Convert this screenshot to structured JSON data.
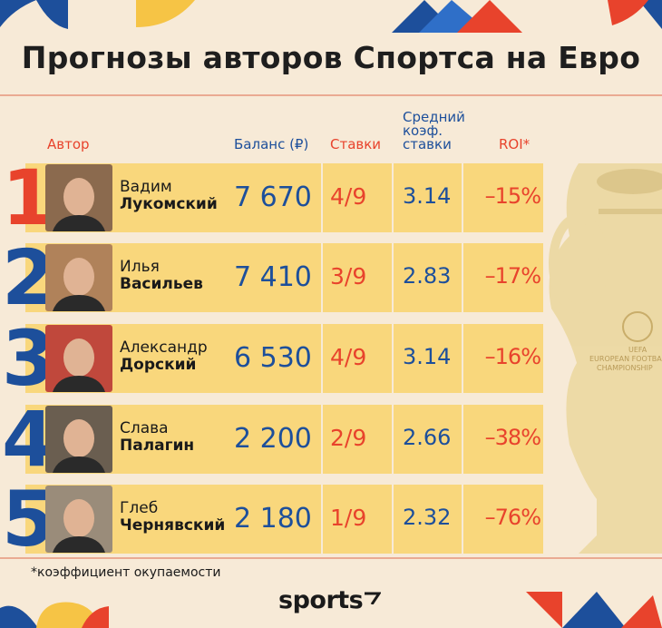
{
  "title": "Прогнозы авторов Спортса на Евро",
  "headers": {
    "author": "Автор",
    "balance": "Баланс (₽)",
    "bets": "Ставки",
    "coef_line1": "Средний",
    "coef_line2": "коэф.",
    "coef_line3": "ставки",
    "roi": "ROI*"
  },
  "rows": [
    {
      "rank": "1",
      "first": "Вадим",
      "last": "Лукомский",
      "balance": "7 670",
      "bets": "4/9",
      "coef": "3.14",
      "roi": "–15%"
    },
    {
      "rank": "2",
      "first": "Илья",
      "last": "Васильев",
      "balance": "7 410",
      "bets": "3/9",
      "coef": "2.83",
      "roi": "–17%"
    },
    {
      "rank": "3",
      "first": "Александр",
      "last": "Дорский",
      "balance": "6 530",
      "bets": "4/9",
      "coef": "3.14",
      "roi": "–16%"
    },
    {
      "rank": "4",
      "first": "Слава",
      "last": "Палагин",
      "balance": "2 200",
      "bets": "2/9",
      "coef": "2.66",
      "roi": "–38%"
    },
    {
      "rank": "5",
      "first": "Глеб",
      "last": "Чернявский",
      "balance": "2 180",
      "bets": "1/9",
      "coef": "2.32",
      "roi": "–76%"
    }
  ],
  "trophy_text": {
    "line1": "UEFA",
    "line2": "EUROPEAN FOOTBALL",
    "line3": "CHAMPIONSHIP"
  },
  "footnote": "*коэффициент окупаемости",
  "logo": "sports",
  "colors": {
    "background": "#f7ead7",
    "row": "#f9d77c",
    "red": "#e8432c",
    "blue": "#1d4f9b",
    "yellow": "#f6c445",
    "navy": "#1d4f9b"
  }
}
